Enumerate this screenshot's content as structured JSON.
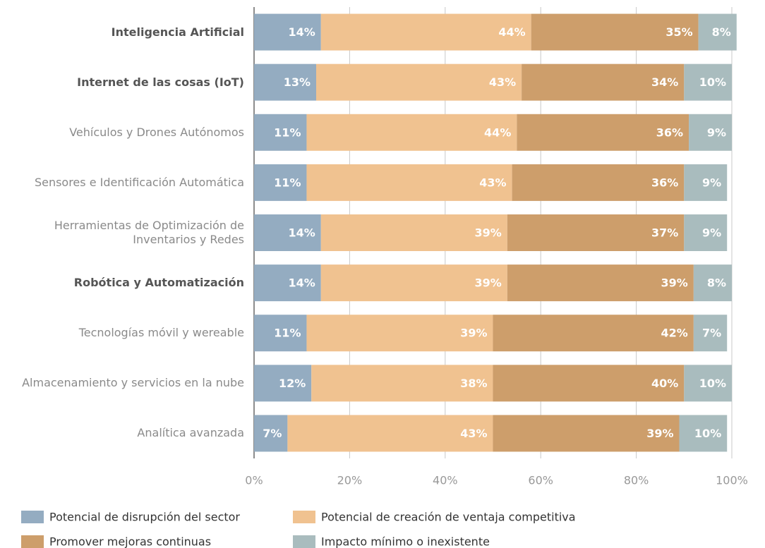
{
  "chart_data": {
    "type": "stacked_barh",
    "categories": [
      "Inteligencia Artificial",
      "Internet de las cosas (IoT)",
      "Vehículos y Drones Autónomos",
      "Sensores e Identificación Automática",
      "Herramientas de Optimización de Inventarios y Redes",
      "Robótica y Automatización",
      "Tecnologías móvil y wereable",
      "Almacenamiento y servicios en la nube",
      "Analítica avanzada"
    ],
    "bold": [
      true,
      true,
      false,
      false,
      false,
      true,
      false,
      false,
      false
    ],
    "series": [
      {
        "name": "Potencial de disrupción del sector",
        "color": "#94acc1",
        "values": [
          14,
          13,
          11,
          11,
          14,
          14,
          11,
          12,
          7
        ],
        "value_labels": [
          "14%",
          "13%",
          "11%",
          "11%",
          "14%",
          "14%",
          "11%",
          "12%",
          "7%"
        ]
      },
      {
        "name": "Potencial de creación de ventaja competitiva",
        "color": "#f0c290",
        "values": [
          44,
          43,
          44,
          43,
          39,
          39,
          39,
          38,
          43
        ],
        "value_labels": [
          "44%",
          "43%",
          "44%",
          "43%",
          "39%",
          "39%",
          "39%",
          "38%",
          "43%"
        ]
      },
      {
        "name": "Promover mejoras continuas",
        "color": "#cd9e6b",
        "values": [
          35,
          34,
          36,
          36,
          37,
          39,
          42,
          40,
          39
        ],
        "value_labels": [
          "35%",
          "34%",
          "36%",
          "36%",
          "37%",
          "39%",
          "42%",
          "40%",
          "39%"
        ]
      },
      {
        "name": "Impacto mínimo o inexistente",
        "color": "#a9bcbe",
        "values": [
          8,
          10,
          9,
          9,
          9,
          8,
          7,
          10,
          10
        ],
        "value_labels": [
          "8%",
          "10%",
          "9%",
          "9%",
          "9%",
          "8%",
          "7%",
          "10%",
          "10%"
        ]
      }
    ],
    "xlim": [
      0,
      100
    ],
    "xticks": [
      {
        "value": 0,
        "label": "0%"
      },
      {
        "value": 20,
        "label": "20%"
      },
      {
        "value": 40,
        "label": "40%"
      },
      {
        "value": 60,
        "label": "60%"
      },
      {
        "value": 80,
        "label": "80%"
      },
      {
        "value": 100,
        "label": "100%"
      }
    ],
    "grid": true
  }
}
